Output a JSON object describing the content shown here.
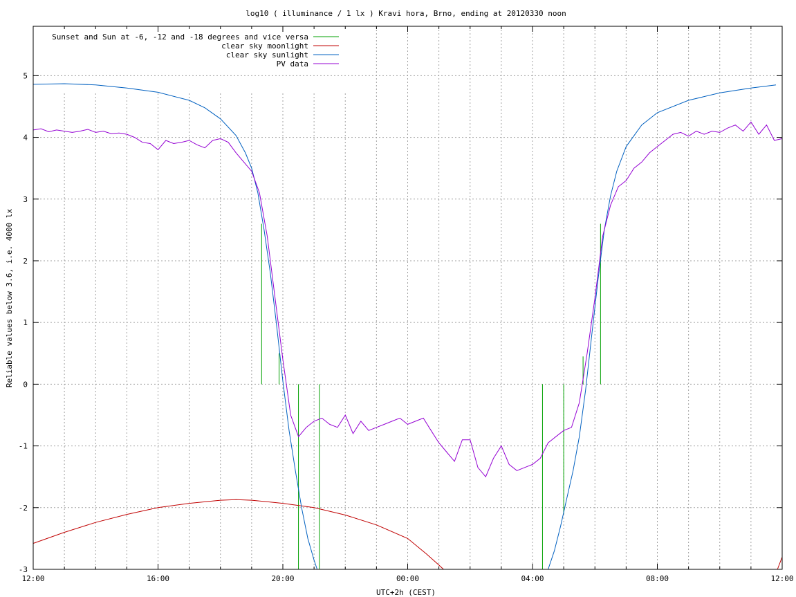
{
  "chart_data": {
    "type": "line",
    "title": "log10 ( illuminance / 1 lx ) Kravi hora, Brno, ending at 20120330 noon",
    "xlabel": "UTC+2h (CEST)",
    "ylabel": "Reliable values below 3.6, i.e. 4000 lx",
    "x_unit": "hours",
    "xlim": [
      0,
      24
    ],
    "ylim": [
      -3,
      5.8
    ],
    "x_ticks": [
      {
        "x": 0,
        "label": "12:00"
      },
      {
        "x": 4,
        "label": "16:00"
      },
      {
        "x": 8,
        "label": "20:00"
      },
      {
        "x": 12,
        "label": "00:00"
      },
      {
        "x": 16,
        "label": "04:00"
      },
      {
        "x": 20,
        "label": "08:00"
      },
      {
        "x": 24,
        "label": "12:00"
      }
    ],
    "x_minor_ticks": [
      1,
      2,
      3,
      5,
      6,
      7,
      9,
      10,
      11,
      13,
      14,
      15,
      17,
      18,
      19,
      21,
      22,
      23
    ],
    "y_ticks": [
      -3,
      -2,
      -1,
      0,
      1,
      2,
      3,
      4,
      5
    ],
    "grid": true,
    "legend_position": "top-left",
    "series": [
      {
        "name": "Sunset and Sun at -6, -12 and -18 degrees and vice versa",
        "color": "#00a000",
        "kind": "impulses",
        "points": [
          {
            "x": 7.32,
            "y": 2.6,
            "y0": 0
          },
          {
            "x": 7.88,
            "y": 0.5,
            "y0": 0
          },
          {
            "x": 8.5,
            "y": 0,
            "y0": -3
          },
          {
            "x": 9.17,
            "y": 0,
            "y0": -3
          },
          {
            "x": 16.32,
            "y": 0,
            "y0": -3
          },
          {
            "x": 17.0,
            "y": 0,
            "y0": -2.1
          },
          {
            "x": 17.62,
            "y": 0.45,
            "y0": 0
          },
          {
            "x": 18.18,
            "y": 2.6,
            "y0": 0
          }
        ]
      },
      {
        "name": "clear sky moonlight",
        "color": "#c00000",
        "kind": "line",
        "points": [
          [
            0.0,
            -2.58
          ],
          [
            1.0,
            -2.4
          ],
          [
            2.0,
            -2.24
          ],
          [
            3.0,
            -2.11
          ],
          [
            4.0,
            -2.0
          ],
          [
            5.0,
            -1.93
          ],
          [
            6.0,
            -1.88
          ],
          [
            6.5,
            -1.87
          ],
          [
            7.0,
            -1.88
          ],
          [
            8.0,
            -1.93
          ],
          [
            9.0,
            -2.0
          ],
          [
            10.0,
            -2.12
          ],
          [
            11.0,
            -2.28
          ],
          [
            12.0,
            -2.5
          ],
          [
            12.6,
            -2.75
          ],
          [
            13.0,
            -2.93
          ],
          [
            13.15,
            -3.0
          ]
        ],
        "points_end": [
          [
            23.85,
            -3.0
          ],
          [
            24.0,
            -2.8
          ]
        ]
      },
      {
        "name": "clear sky sunlight",
        "color": "#0060c0",
        "kind": "line",
        "points": [
          [
            0.0,
            4.86
          ],
          [
            1.0,
            4.87
          ],
          [
            2.0,
            4.85
          ],
          [
            3.0,
            4.8
          ],
          [
            4.0,
            4.73
          ],
          [
            5.0,
            4.6
          ],
          [
            5.5,
            4.48
          ],
          [
            6.0,
            4.3
          ],
          [
            6.5,
            4.03
          ],
          [
            6.8,
            3.75
          ],
          [
            7.0,
            3.5
          ],
          [
            7.2,
            3.1
          ],
          [
            7.4,
            2.5
          ],
          [
            7.6,
            1.8
          ],
          [
            7.8,
            0.95
          ],
          [
            8.0,
            0.05
          ],
          [
            8.2,
            -0.75
          ],
          [
            8.4,
            -1.4
          ],
          [
            8.6,
            -2.0
          ],
          [
            8.8,
            -2.5
          ],
          [
            9.0,
            -2.85
          ],
          [
            9.1,
            -3.0
          ]
        ],
        "points_end": [
          [
            16.5,
            -3.0
          ],
          [
            16.7,
            -2.7
          ],
          [
            16.9,
            -2.3
          ],
          [
            17.1,
            -1.85
          ],
          [
            17.3,
            -1.4
          ],
          [
            17.5,
            -0.85
          ],
          [
            17.7,
            -0.1
          ],
          [
            17.9,
            0.8
          ],
          [
            18.1,
            1.7
          ],
          [
            18.3,
            2.5
          ],
          [
            18.5,
            3.05
          ],
          [
            18.7,
            3.45
          ],
          [
            19.0,
            3.85
          ],
          [
            19.5,
            4.2
          ],
          [
            20.0,
            4.4
          ],
          [
            21.0,
            4.6
          ],
          [
            22.0,
            4.72
          ],
          [
            23.0,
            4.8
          ],
          [
            23.8,
            4.85
          ]
        ]
      },
      {
        "name": "PV data",
        "color": "#9400d3",
        "kind": "line",
        "points": [
          [
            0.0,
            4.12
          ],
          [
            0.25,
            4.14
          ],
          [
            0.5,
            4.09
          ],
          [
            0.75,
            4.12
          ],
          [
            1.0,
            4.1
          ],
          [
            1.25,
            4.08
          ],
          [
            1.5,
            4.1
          ],
          [
            1.75,
            4.13
          ],
          [
            2.0,
            4.08
          ],
          [
            2.25,
            4.1
          ],
          [
            2.5,
            4.06
          ],
          [
            2.75,
            4.07
          ],
          [
            3.0,
            4.05
          ],
          [
            3.25,
            4.0
          ],
          [
            3.5,
            3.92
          ],
          [
            3.75,
            3.9
          ],
          [
            4.0,
            3.8
          ],
          [
            4.25,
            3.95
          ],
          [
            4.5,
            3.9
          ],
          [
            4.75,
            3.92
          ],
          [
            5.0,
            3.95
          ],
          [
            5.25,
            3.88
          ],
          [
            5.5,
            3.83
          ],
          [
            5.75,
            3.95
          ],
          [
            6.0,
            3.98
          ],
          [
            6.25,
            3.92
          ],
          [
            6.5,
            3.75
          ],
          [
            6.75,
            3.6
          ],
          [
            7.0,
            3.45
          ],
          [
            7.25,
            3.1
          ],
          [
            7.5,
            2.4
          ],
          [
            7.75,
            1.4
          ],
          [
            8.0,
            0.4
          ],
          [
            8.25,
            -0.5
          ],
          [
            8.5,
            -0.85
          ],
          [
            8.75,
            -0.7
          ],
          [
            9.0,
            -0.6
          ],
          [
            9.25,
            -0.55
          ],
          [
            9.5,
            -0.65
          ],
          [
            9.75,
            -0.7
          ],
          [
            10.0,
            -0.5
          ],
          [
            10.25,
            -0.8
          ],
          [
            10.5,
            -0.6
          ],
          [
            10.75,
            -0.75
          ],
          [
            11.0,
            -0.7
          ],
          [
            11.25,
            -0.65
          ],
          [
            11.5,
            -0.6
          ],
          [
            11.75,
            -0.55
          ],
          [
            12.0,
            -0.65
          ],
          [
            12.25,
            -0.6
          ],
          [
            12.5,
            -0.55
          ],
          [
            12.75,
            -0.75
          ],
          [
            13.0,
            -0.95
          ],
          [
            13.25,
            -1.1
          ],
          [
            13.5,
            -1.25
          ],
          [
            13.75,
            -0.9
          ],
          [
            14.0,
            -0.9
          ],
          [
            14.25,
            -1.35
          ],
          [
            14.5,
            -1.5
          ],
          [
            14.75,
            -1.2
          ],
          [
            15.0,
            -1.0
          ],
          [
            15.25,
            -1.3
          ],
          [
            15.5,
            -1.4
          ],
          [
            15.75,
            -1.35
          ],
          [
            16.0,
            -1.3
          ],
          [
            16.25,
            -1.2
          ],
          [
            16.5,
            -0.95
          ],
          [
            16.75,
            -0.85
          ],
          [
            17.0,
            -0.75
          ],
          [
            17.25,
            -0.7
          ],
          [
            17.5,
            -0.3
          ],
          [
            17.75,
            0.5
          ],
          [
            18.0,
            1.4
          ],
          [
            18.25,
            2.4
          ],
          [
            18.5,
            2.9
          ],
          [
            18.75,
            3.2
          ],
          [
            19.0,
            3.3
          ],
          [
            19.25,
            3.5
          ],
          [
            19.5,
            3.6
          ],
          [
            19.75,
            3.75
          ],
          [
            20.0,
            3.85
          ],
          [
            20.25,
            3.95
          ],
          [
            20.5,
            4.05
          ],
          [
            20.75,
            4.08
          ],
          [
            21.0,
            4.02
          ],
          [
            21.25,
            4.1
          ],
          [
            21.5,
            4.05
          ],
          [
            21.75,
            4.1
          ],
          [
            22.0,
            4.08
          ],
          [
            22.25,
            4.15
          ],
          [
            22.5,
            4.2
          ],
          [
            22.75,
            4.1
          ],
          [
            23.0,
            4.25
          ],
          [
            23.25,
            4.05
          ],
          [
            23.5,
            4.2
          ],
          [
            23.75,
            3.95
          ],
          [
            24.0,
            3.98
          ]
        ]
      }
    ]
  }
}
